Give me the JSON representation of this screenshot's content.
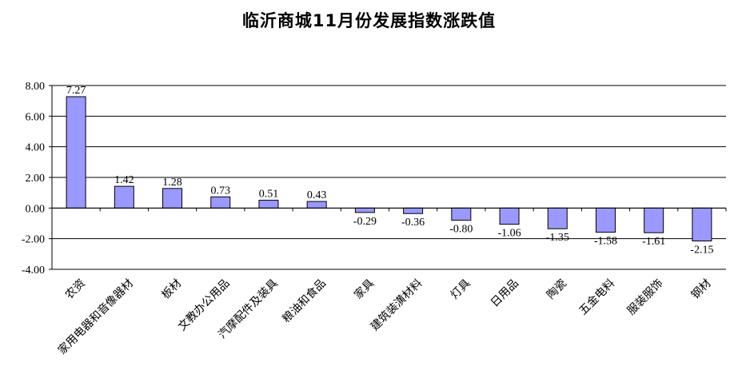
{
  "chart_data": {
    "type": "bar",
    "title": "临沂商城11月份发展指数涨跌值",
    "xlabel": "",
    "ylabel": "",
    "ylim": [
      -4,
      8
    ],
    "yticks": [
      "8.00",
      "6.00",
      "4.00",
      "2.00",
      "0.00",
      "-2.00",
      "-4.00"
    ],
    "grid": true,
    "bar_color": "#9999ff",
    "categories": [
      "农资",
      "家用电器和音像器材",
      "板材",
      "文教办公用品",
      "汽摩配件及装具",
      "粮油和食品",
      "家具",
      "建筑装潢材料",
      "灯具",
      "日用品",
      "陶瓷",
      "五金电料",
      "服装服饰",
      "钢材"
    ],
    "values": [
      7.27,
      1.42,
      1.28,
      0.73,
      0.51,
      0.43,
      -0.29,
      -0.36,
      -0.8,
      -1.06,
      -1.35,
      -1.58,
      -1.61,
      -2.15
    ],
    "value_labels": [
      "7.27",
      "1.42",
      "1.28",
      "0.73",
      "0.51",
      "0.43",
      "-0.29",
      "-0.36",
      "-0.80",
      "-1.06",
      "-1.35",
      "-1.58",
      "-1.61",
      "-2.15"
    ]
  }
}
